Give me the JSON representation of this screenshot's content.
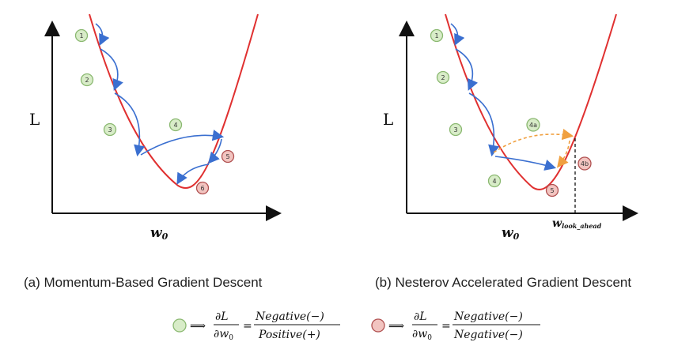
{
  "panel_a": {
    "caption": "(a) Momentum-Based Gradient Descent",
    "y_axis_label": "L",
    "x_axis_label": "w",
    "x_axis_sub": "0",
    "steps": [
      "1",
      "2",
      "3",
      "4",
      "5",
      "6"
    ]
  },
  "panel_b": {
    "caption": "(b) Nesterov Accelerated Gradient Descent",
    "y_axis_label": "L",
    "x_axis_label": "w",
    "x_axis_sub": "0",
    "lookahead_label": "w",
    "lookahead_sub": "look_ahead",
    "steps": [
      "1",
      "2",
      "3",
      "4a",
      "4b",
      "4",
      "5"
    ]
  },
  "legend": {
    "green": {
      "arrow": "⟹",
      "numerator": "∂L",
      "denominator": "∂w",
      "denominator_sub": "0",
      "equals": "=",
      "frac_top": "Negative(−)",
      "frac_bottom": "Positive(+)"
    },
    "red": {
      "arrow": "⟹",
      "numerator": "∂L",
      "denominator": "∂w",
      "denominator_sub": "0",
      "equals": "=",
      "frac_top": "Negative(−)",
      "frac_bottom": "Negative(−)"
    }
  },
  "colors": {
    "curve": "#e03030",
    "step_arrow": "#3a6fd0",
    "lookahead_arrow": "#f0a040",
    "green_fill": "#d8ecc8",
    "green_stroke": "#8ab870",
    "red_fill": "#f2c4c0",
    "red_stroke": "#b05050"
  }
}
